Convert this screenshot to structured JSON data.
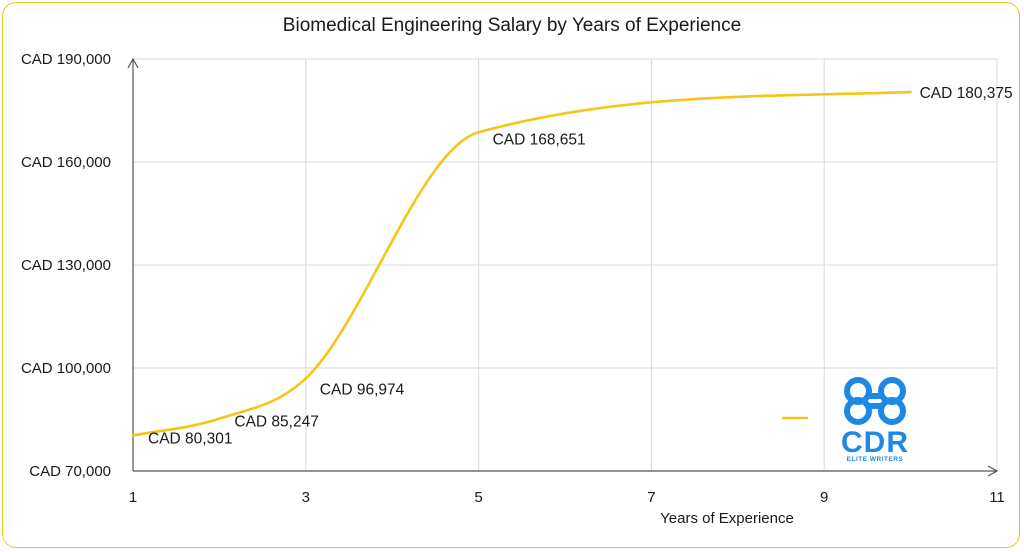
{
  "chart_data": {
    "type": "line",
    "title": "Biomedical Engineering Salary by Years of Experience",
    "xlabel": "Years of Experience",
    "ylabel": "",
    "xlim": [
      1,
      11
    ],
    "ylim": [
      70000,
      190000
    ],
    "x_ticks": [
      "1",
      "3",
      "5",
      "7",
      "9",
      "11"
    ],
    "y_ticks": [
      "CAD 70,000",
      "CAD 100,000",
      "CAD 130,000",
      "CAD 160,000",
      "CAD 190,000"
    ],
    "grid": true,
    "smooth": true,
    "legend_position": "bottom-right",
    "series": [
      {
        "name": "",
        "color": "#f5c518",
        "points": [
          {
            "x": 1,
            "y": 80301,
            "label": "CAD 80,301"
          },
          {
            "x": 2,
            "y": 85247,
            "label": "CAD 85,247"
          },
          {
            "x": 3,
            "y": 96974,
            "label": "CAD 96,974"
          },
          {
            "x": 5,
            "y": 168651,
            "label": "CAD 168,651"
          },
          {
            "x": 10,
            "y": 180375,
            "label": "CAD 180,375"
          }
        ]
      }
    ]
  },
  "logo": {
    "text": "CDR",
    "subtext": "ELITE WRITERS",
    "color": "#1e88e5"
  }
}
